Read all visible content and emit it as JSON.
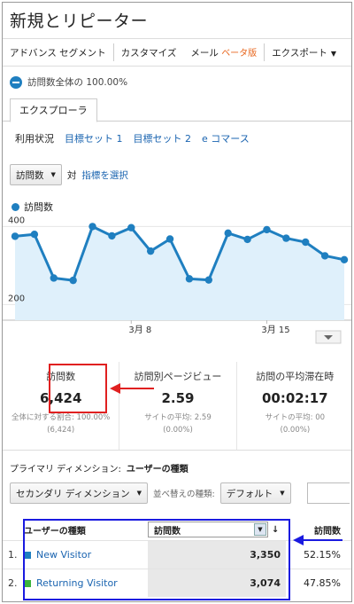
{
  "title": "新規とリピーター",
  "toolbar": {
    "advanced_segment": "アドバンス セグメント",
    "customize": "カスタマイズ",
    "email": "メール",
    "beta": "ベータ版",
    "export": "エクスポート"
  },
  "segment": {
    "label": "訪問数全体の 100.00%"
  },
  "tabs": {
    "explorer": "エクスプローラ"
  },
  "subtabs": [
    "利用状況",
    "目標セット 1",
    "目標セット 2",
    "e コマース"
  ],
  "metric_select": {
    "value": "訪問数",
    "vs": "対",
    "select_metric": "指標を選択"
  },
  "legend": {
    "label": "訪問数"
  },
  "colors": {
    "series": "#1f7fc0",
    "area": "#dff0fb",
    "new_visitor": "#1f7fc0",
    "returning_visitor": "#3bb33b",
    "callout_red": "#e02020",
    "callout_blue": "#1a1ae0"
  },
  "chart_data": {
    "type": "area",
    "y_ticks": [
      "400",
      "200"
    ],
    "ylim": [
      0,
      400
    ],
    "x_ticks": [
      "3月 8",
      "3月 15"
    ],
    "values": [
      375,
      380,
      268,
      262,
      400,
      376,
      397,
      337,
      368,
      266,
      263,
      383,
      367,
      392,
      370,
      360,
      325,
      315
    ],
    "grid": true
  },
  "scorecards": [
    {
      "label": "訪問数",
      "value": "6,424",
      "sub": "全体に対する割合: 100.00%",
      "sub2": "(6,424)"
    },
    {
      "label": "訪問別ページビュー",
      "value": "2.59",
      "sub": "サイトの平均: 2.59",
      "sub2": "(0.00%)"
    },
    {
      "label": "訪問の平均滞在時",
      "value": "00:02:17",
      "sub": "サイトの平均: 00",
      "sub2": "(0.00%)"
    }
  ],
  "primary_dimension": {
    "label": "プライマリ ディメンション:",
    "value": "ユーザーの種類"
  },
  "secondary": {
    "button": "セカンダリ ディメンション",
    "sort_label": "並べ替えの種類:",
    "sort_value": "デフォルト"
  },
  "table": {
    "header_dim": "ユーザーの種類",
    "header_metric_select": "訪問数",
    "header_visits": "訪問数",
    "rows": [
      {
        "num": "1.",
        "name": "New Visitor",
        "value": "3,350",
        "pct": "52.15%"
      },
      {
        "num": "2.",
        "name": "Returning Visitor",
        "value": "3,074",
        "pct": "47.85%"
      }
    ]
  }
}
